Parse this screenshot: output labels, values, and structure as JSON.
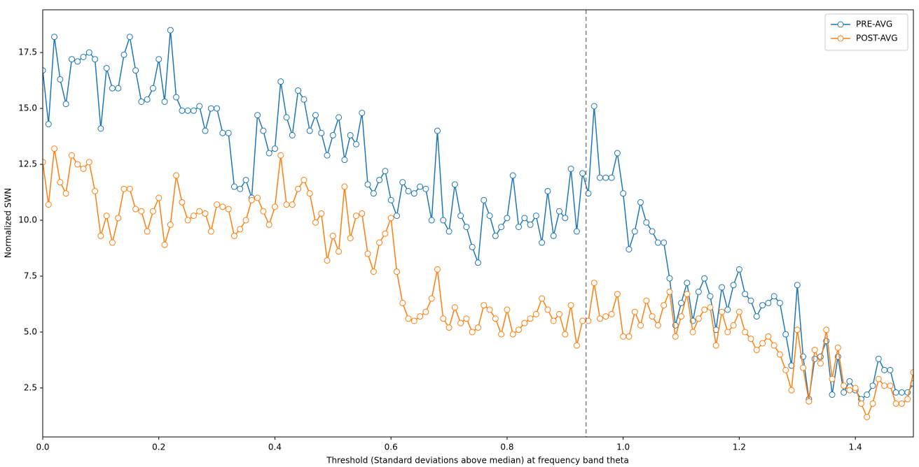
{
  "chart_data": {
    "type": "line",
    "xlabel": "Threshold (Standard deviations above median) at frequency band theta",
    "ylabel": "Normalized SWN",
    "xlim": [
      0,
      1.5
    ],
    "ylim": [
      0.31,
      19.41
    ],
    "xticks": [
      {
        "value": 0,
        "label": "0.0"
      },
      0.2,
      0.4,
      0.6,
      0.8,
      {
        "value": 1,
        "label": "1.0"
      },
      1.2,
      1.4
    ],
    "yticks": [
      2.5,
      {
        "value": 5,
        "label": "5.0"
      },
      7.5,
      {
        "value": 10,
        "label": "10.0"
      },
      12.5,
      {
        "value": 15,
        "label": "15.0"
      },
      17.5
    ],
    "vline": 0.936,
    "vline_color": "#808080",
    "legend": "upper right",
    "x": [
      0,
      0.01,
      0.02,
      0.03,
      0.04,
      0.05,
      0.06,
      0.07,
      0.08,
      0.09,
      0.1,
      0.11,
      0.12,
      0.13,
      0.14,
      0.15,
      0.16,
      0.17,
      0.18,
      0.19,
      0.2,
      0.21,
      0.22,
      0.23,
      0.24,
      0.25,
      0.26,
      0.27,
      0.28,
      0.29,
      0.3,
      0.31,
      0.32,
      0.33,
      0.34,
      0.35,
      0.36,
      0.37,
      0.38,
      0.39,
      0.4,
      0.41,
      0.42,
      0.43,
      0.44,
      0.45,
      0.46,
      0.47,
      0.48,
      0.49,
      0.5,
      0.51,
      0.52,
      0.53,
      0.54,
      0.55,
      0.56,
      0.57,
      0.58,
      0.59,
      0.6,
      0.61,
      0.62,
      0.63,
      0.64,
      0.65,
      0.66,
      0.67,
      0.68,
      0.69,
      0.7,
      0.71,
      0.72,
      0.73,
      0.74,
      0.75,
      0.76,
      0.77,
      0.78,
      0.79,
      0.8,
      0.81,
      0.82,
      0.83,
      0.84,
      0.85,
      0.86,
      0.87,
      0.88,
      0.89,
      0.9,
      0.91,
      0.92,
      0.93,
      0.94,
      0.95,
      0.96,
      0.97,
      0.98,
      0.99,
      1,
      1.01,
      1.02,
      1.03,
      1.04,
      1.05,
      1.06,
      1.07,
      1.08,
      1.09,
      1.1,
      1.11,
      1.12,
      1.13,
      1.14,
      1.15,
      1.16,
      1.17,
      1.18,
      1.19,
      1.2,
      1.21,
      1.22,
      1.23,
      1.24,
      1.25,
      1.26,
      1.27,
      1.28,
      1.29,
      1.3,
      1.31,
      1.32,
      1.33,
      1.34,
      1.35,
      1.36,
      1.37,
      1.38,
      1.39,
      1.4,
      1.41,
      1.42,
      1.43,
      1.44,
      1.45,
      1.46,
      1.47,
      1.48,
      1.49,
      1.5
    ],
    "series": [
      {
        "name": "PRE-AVG",
        "color": "#1f77b4",
        "values": [
          16.7,
          14.3,
          18.2,
          16.3,
          15.2,
          17.2,
          17.1,
          17.3,
          17.5,
          17.2,
          14.1,
          16.8,
          15.9,
          15.9,
          17.4,
          18.2,
          16.7,
          15.3,
          15.4,
          15.9,
          17.2,
          15.3,
          18.5,
          15.5,
          14.9,
          14.9,
          14.9,
          15.1,
          14.0,
          15.0,
          15.0,
          13.9,
          13.9,
          11.5,
          11.4,
          11.8,
          11.0,
          14.7,
          14.0,
          13.0,
          13.2,
          16.2,
          14.6,
          13.8,
          15.8,
          15.4,
          14.0,
          14.7,
          13.9,
          12.9,
          13.8,
          14.6,
          12.7,
          13.8,
          13.4,
          14.8,
          11.6,
          11.2,
          11.8,
          12.2,
          10.9,
          10.2,
          11.7,
          11.3,
          11.2,
          11.5,
          11.4,
          10.0,
          14.0,
          10.0,
          9.5,
          11.6,
          10.2,
          9.7,
          8.8,
          8.1,
          10.9,
          10.2,
          9.3,
          9.7,
          10.1,
          12.0,
          9.7,
          10.1,
          9.8,
          10.2,
          9.0,
          11.3,
          9.3,
          10.4,
          10.1,
          12.3,
          9.5,
          12.1,
          11.2,
          15.1,
          11.9,
          11.9,
          11.9,
          13.0,
          11.2,
          8.7,
          9.5,
          10.8,
          9.9,
          9.5,
          9.0,
          9.0,
          7.4,
          5.3,
          6.3,
          7.2,
          5.5,
          6.8,
          7.4,
          6.6,
          5.1,
          7.0,
          6.0,
          7.1,
          7.8,
          6.7,
          6.4,
          5.7,
          6.2,
          6.3,
          6.6,
          6.3,
          4.9,
          3.5,
          7.1,
          3.9,
          2.0,
          3.8,
          3.9,
          4.6,
          2.2,
          3.9,
          2.3,
          2.8,
          2.4,
          2.0,
          2.2,
          2.6,
          3.8,
          3.3,
          3.3,
          2.3,
          2.3,
          2.3,
          2.7
        ]
      },
      {
        "name": "POST-AVG",
        "color": "#ff7f0e",
        "values": [
          12.6,
          10.7,
          13.2,
          11.7,
          11.2,
          12.9,
          12.5,
          12.3,
          12.6,
          11.3,
          9.3,
          10.2,
          9.0,
          10.1,
          11.4,
          11.4,
          10.5,
          10.4,
          9.5,
          10.4,
          11.0,
          8.9,
          9.8,
          12.0,
          10.8,
          10.0,
          10.2,
          10.4,
          10.3,
          9.5,
          10.7,
          10.6,
          10.5,
          9.3,
          9.6,
          10.0,
          10.9,
          11.0,
          10.4,
          9.8,
          10.6,
          12.9,
          10.7,
          10.7,
          11.4,
          11.8,
          11.2,
          9.9,
          10.3,
          8.2,
          9.3,
          8.6,
          11.5,
          9.2,
          10.2,
          10.3,
          8.5,
          7.7,
          9.0,
          9.4,
          10.1,
          7.7,
          6.3,
          5.6,
          5.5,
          5.7,
          5.9,
          6.5,
          7.8,
          5.6,
          5.2,
          6.1,
          5.4,
          5.6,
          5.0,
          5.2,
          6.2,
          6.0,
          5.6,
          4.9,
          6.0,
          4.9,
          5.1,
          5.4,
          5.6,
          5.8,
          6.5,
          6.0,
          5.5,
          5.8,
          4.9,
          6.2,
          4.4,
          5.5,
          5.5,
          7.2,
          5.6,
          5.7,
          5.8,
          6.7,
          4.8,
          4.8,
          5.9,
          5.3,
          6.4,
          5.7,
          5.3,
          6.2,
          6.8,
          4.8,
          5.7,
          6.7,
          5.0,
          5.6,
          6.0,
          6.1,
          4.4,
          5.9,
          5.0,
          5.3,
          5.9,
          5.0,
          4.7,
          4.2,
          4.5,
          4.8,
          4.4,
          4.0,
          3.3,
          2.4,
          5.1,
          3.4,
          1.9,
          4.2,
          3.6,
          5.1,
          2.9,
          4.3,
          2.6,
          2.4,
          2.5,
          1.8,
          1.2,
          1.8,
          2.9,
          2.6,
          2.6,
          1.8,
          1.8,
          2.0,
          3.2
        ]
      }
    ]
  }
}
